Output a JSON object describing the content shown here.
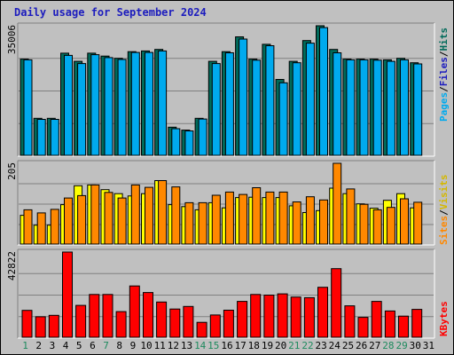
{
  "title": "Daily usage for September 2024",
  "colors": {
    "background": "#c0c0c0",
    "title": "#1c1cbe",
    "hits": "#006a5a",
    "files": "#00aaee",
    "sites": "#ff8800",
    "visits": "#ffff00",
    "kbytes": "#ff0000",
    "weekday_label": "#000000",
    "weekend_label": "#1e8a5e"
  },
  "chart_data": [
    {
      "type": "bar",
      "panel": "hits_files",
      "max_label": "35006",
      "legend": {
        "pages": "Pages",
        "files": "Files",
        "hits": "Hits",
        "sep1": "/",
        "sep2": "/"
      },
      "categories": [
        "1",
        "2",
        "3",
        "4",
        "5",
        "6",
        "7",
        "8",
        "9",
        "10",
        "11",
        "12",
        "13",
        "14",
        "15",
        "16",
        "17",
        "18",
        "19",
        "20",
        "21",
        "22",
        "23",
        "24",
        "25",
        "26",
        "27",
        "28",
        "29",
        "30",
        "31"
      ],
      "weekend_days": [
        1,
        7,
        14,
        15,
        21,
        22,
        28,
        29
      ],
      "series": [
        {
          "name": "Hits",
          "values": [
            26000,
            10000,
            10000,
            27600,
            25400,
            27600,
            26800,
            26200,
            28000,
            28200,
            28600,
            7600,
            6800,
            10000,
            25400,
            28000,
            32000,
            26000,
            30000,
            20500,
            25400,
            31000,
            35006,
            28600,
            26000,
            26000,
            26000,
            25800,
            26200,
            25000,
            null
          ]
        },
        {
          "name": "Files",
          "values": [
            25800,
            9700,
            9700,
            27000,
            24800,
            27200,
            26400,
            25900,
            27800,
            27800,
            28200,
            7200,
            6600,
            9800,
            24800,
            27700,
            31400,
            25700,
            29600,
            19600,
            25000,
            30300,
            34500,
            27700,
            25800,
            25800,
            25700,
            25400,
            25800,
            24700,
            null
          ]
        }
      ],
      "ylim": [
        0,
        35006
      ]
    },
    {
      "type": "bar",
      "panel": "sites_visits",
      "max_label": "205",
      "legend": {
        "sites": "Sites",
        "visits": "Visits",
        "sep": "/"
      },
      "categories": [
        "1",
        "2",
        "3",
        "4",
        "5",
        "6",
        "7",
        "8",
        "9",
        "10",
        "11",
        "12",
        "13",
        "14",
        "15",
        "16",
        "17",
        "18",
        "19",
        "20",
        "21",
        "22",
        "23",
        "24",
        "25",
        "26",
        "27",
        "28",
        "29",
        "30",
        "31"
      ],
      "series": [
        {
          "name": "Visits",
          "values": [
            73,
            48,
            48,
            100,
            148,
            150,
            138,
            128,
            122,
            128,
            161,
            100,
            95,
            87,
            105,
            92,
            118,
            119,
            118,
            118,
            97,
            80,
            85,
            142,
            128,
            102,
            91,
            111,
            128,
            92,
            null
          ]
        },
        {
          "name": "Sites",
          "values": [
            87,
            79,
            88,
            117,
            123,
            150,
            131,
            117,
            150,
            144,
            161,
            145,
            105,
            105,
            124,
            132,
            126,
            143,
            132,
            132,
            107,
            120,
            112,
            205,
            140,
            101,
            87,
            93,
            115,
            106,
            null
          ]
        }
      ],
      "ylim": [
        0,
        205
      ]
    },
    {
      "type": "bar",
      "panel": "kbytes",
      "max_label": "42822",
      "legend": {
        "kbytes": "KBytes"
      },
      "categories": [
        "1",
        "2",
        "3",
        "4",
        "5",
        "6",
        "7",
        "8",
        "9",
        "10",
        "11",
        "12",
        "13",
        "14",
        "15",
        "16",
        "17",
        "18",
        "19",
        "20",
        "21",
        "22",
        "23",
        "24",
        "25",
        "26",
        "27",
        "28",
        "29",
        "30",
        "31"
      ],
      "series": [
        {
          "name": "KBytes",
          "values": [
            13500,
            10300,
            11000,
            42822,
            16000,
            21500,
            21500,
            12900,
            25800,
            22500,
            17700,
            14200,
            15500,
            7500,
            11200,
            13600,
            18000,
            21500,
            21200,
            21800,
            20200,
            19900,
            25100,
            34500,
            15800,
            10000,
            18000,
            13200,
            10600,
            14000,
            null
          ]
        }
      ],
      "ylim": [
        0,
        42822
      ]
    }
  ]
}
